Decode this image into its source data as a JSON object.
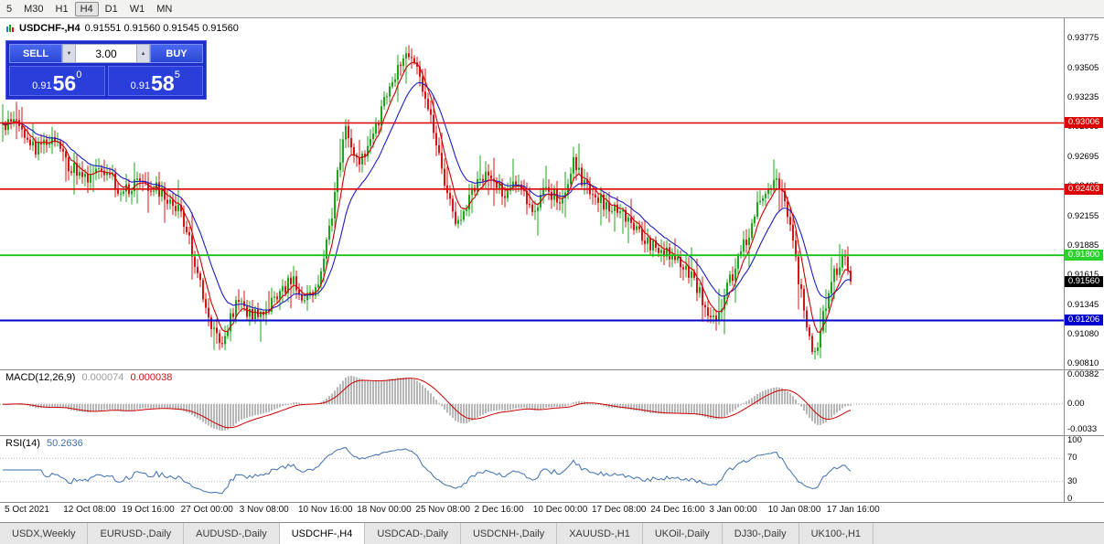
{
  "toolbar": {
    "timeframes": [
      {
        "label": "5",
        "active": false
      },
      {
        "label": "M30",
        "active": false
      },
      {
        "label": "H1",
        "active": false
      },
      {
        "label": "H4",
        "active": true
      },
      {
        "label": "D1",
        "active": false
      },
      {
        "label": "W1",
        "active": false
      },
      {
        "label": "MN",
        "active": false
      }
    ]
  },
  "chart": {
    "title": "USDCHF-,H4",
    "ohlc_text": "0.91551 0.91560 0.91545 0.91560"
  },
  "trade_panel": {
    "sell_label": "SELL",
    "buy_label": "BUY",
    "volume": "3.00",
    "sell_price_prefix": "0.91",
    "sell_price_big": "56",
    "sell_price_sup": "0",
    "buy_price_prefix": "0.91",
    "buy_price_big": "58",
    "buy_price_sup": "5"
  },
  "icons": {
    "spinner_down": "▼",
    "spinner_up": "▲"
  },
  "levels": [
    {
      "label": "0.93006",
      "price": 0.93006,
      "bg": "#dd0000",
      "fg": "#ffffff",
      "line": "#dd0000",
      "width": 1.6
    },
    {
      "label": "0.92403",
      "price": 0.92403,
      "bg": "#dd0000",
      "fg": "#ffffff",
      "line": "#dd0000",
      "width": 1.6
    },
    {
      "label": "0.91800",
      "price": 0.918,
      "bg": "#2bd22b",
      "fg": "#ffffff",
      "line": "#17c317",
      "width": 1.8
    },
    {
      "label": "0.91206",
      "price": 0.91206,
      "bg": "#0000cc",
      "fg": "#ffffff",
      "line": "#0000cc",
      "width": 2
    }
  ],
  "current_price": {
    "label": "0.91560",
    "price": 0.9156,
    "bg": "#000000",
    "fg": "#ffffff"
  },
  "indicators": {
    "macd": {
      "label": "MACD(12,26,9)",
      "value_main": "0.000074",
      "value_signal": "0.000038",
      "axis": [
        {
          "label": "0.00382",
          "value": 0.00382
        },
        {
          "label": "0.00",
          "value": 0
        },
        {
          "label": "-0.0033",
          "value": -0.0033
        }
      ]
    },
    "rsi": {
      "label": "RSI(14)",
      "value": "50.2636",
      "axis": [
        {
          "label": "100",
          "value": 100
        },
        {
          "label": "70",
          "value": 70
        },
        {
          "label": "30",
          "value": 30
        },
        {
          "label": "0",
          "value": 0
        }
      ],
      "levels": [
        70,
        30
      ]
    }
  },
  "time_axis": {
    "labels": [
      "5 Oct 2021",
      "12 Oct 08:00",
      "19 Oct 16:00",
      "27 Oct 00:00",
      "3 Nov 08:00",
      "10 Nov 16:00",
      "18 Nov 00:00",
      "25 Nov 08:00",
      "2 Dec 16:00",
      "10 Dec 00:00",
      "17 Dec 08:00",
      "24 Dec 16:00",
      "3 Jan 00:00",
      "10 Jan 08:00",
      "17 Jan 16:00"
    ]
  },
  "tabs": [
    {
      "label": "USDX,Weekly",
      "active": false
    },
    {
      "label": "EURUSD-,Daily",
      "active": false
    },
    {
      "label": "AUDUSD-,Daily",
      "active": false
    },
    {
      "label": "USDCHF-,H4",
      "active": true
    },
    {
      "label": "USDCAD-,Daily",
      "active": false
    },
    {
      "label": "USDCNH-,Daily",
      "active": false
    },
    {
      "label": "XAUUSD-,H1",
      "active": false
    },
    {
      "label": "UKOil-,Daily",
      "active": false
    },
    {
      "label": "DJ30-,Daily",
      "active": false
    },
    {
      "label": "UK100-,H1",
      "active": false
    }
  ],
  "colors": {
    "candle_up": "#1ca61c",
    "candle_down": "#d51515",
    "ma_fast": "#cc0000",
    "ma_slow": "#1c1cc8",
    "macd_hist": "#b8b8b8",
    "macd_signal": "#cc0000",
    "rsi_line": "#3f6fae",
    "level_red": "#dd0000",
    "level_green": "#2bd22b",
    "level_blue": "#0000cc",
    "badge_black": "#000000"
  },
  "chart_data": {
    "type": "candlestick",
    "title": "USDCHF-,H4",
    "symbol": "USDCHF",
    "timeframe": "H4",
    "current_ohlc": {
      "open": 0.91551,
      "high": 0.9156,
      "low": 0.91545,
      "close": 0.9156
    },
    "bid": 0.9156,
    "ask": 0.91585,
    "y_axis_range": [
      0.9076,
      0.9396
    ],
    "y_ticks": [
      "0.93775",
      "0.93505",
      "0.93235",
      "0.92965",
      "0.92695",
      "0.92425",
      "0.92155",
      "0.91885",
      "0.91615",
      "0.91345",
      "0.91080",
      "0.90810"
    ],
    "horizontal_levels": [
      0.93006,
      0.92403,
      0.918,
      0.91206
    ],
    "macd_axis_values": [
      0.00382,
      0,
      -0.0033
    ],
    "rsi_axis_values": [
      100,
      70,
      30,
      0
    ],
    "candles_n": 310,
    "last_close": 0.9156,
    "price_path_waypoints": [
      [
        0.0,
        0.9299
      ],
      [
        0.015,
        0.9306
      ],
      [
        0.04,
        0.9275
      ],
      [
        0.06,
        0.9291
      ],
      [
        0.075,
        0.9263
      ],
      [
        0.1,
        0.9249
      ],
      [
        0.12,
        0.9259
      ],
      [
        0.14,
        0.9238
      ],
      [
        0.165,
        0.9246
      ],
      [
        0.19,
        0.9237
      ],
      [
        0.21,
        0.922
      ],
      [
        0.228,
        0.917
      ],
      [
        0.243,
        0.912
      ],
      [
        0.258,
        0.9093
      ],
      [
        0.275,
        0.9138
      ],
      [
        0.295,
        0.9125
      ],
      [
        0.315,
        0.9133
      ],
      [
        0.342,
        0.916
      ],
      [
        0.355,
        0.914
      ],
      [
        0.37,
        0.9152
      ],
      [
        0.388,
        0.9215
      ],
      [
        0.403,
        0.9298
      ],
      [
        0.418,
        0.9262
      ],
      [
        0.435,
        0.9283
      ],
      [
        0.455,
        0.933
      ],
      [
        0.473,
        0.9362
      ],
      [
        0.49,
        0.9349
      ],
      [
        0.505,
        0.9307
      ],
      [
        0.52,
        0.9244
      ],
      [
        0.538,
        0.9205
      ],
      [
        0.555,
        0.9241
      ],
      [
        0.575,
        0.9255
      ],
      [
        0.59,
        0.9233
      ],
      [
        0.61,
        0.9246
      ],
      [
        0.625,
        0.9222
      ],
      [
        0.64,
        0.9241
      ],
      [
        0.658,
        0.9229
      ],
      [
        0.672,
        0.9265
      ],
      [
        0.69,
        0.9239
      ],
      [
        0.71,
        0.9226
      ],
      [
        0.73,
        0.9216
      ],
      [
        0.75,
        0.9201
      ],
      [
        0.77,
        0.9186
      ],
      [
        0.79,
        0.9178
      ],
      [
        0.81,
        0.9163
      ],
      [
        0.828,
        0.9136
      ],
      [
        0.84,
        0.9118
      ],
      [
        0.855,
        0.9151
      ],
      [
        0.875,
        0.9191
      ],
      [
        0.893,
        0.9229
      ],
      [
        0.908,
        0.9249
      ],
      [
        0.92,
        0.9239
      ],
      [
        0.935,
        0.9176
      ],
      [
        0.95,
        0.9106
      ],
      [
        0.958,
        0.9091
      ],
      [
        0.97,
        0.9131
      ],
      [
        0.982,
        0.9166
      ],
      [
        0.992,
        0.9177
      ],
      [
        1.0,
        0.9156
      ]
    ]
  }
}
